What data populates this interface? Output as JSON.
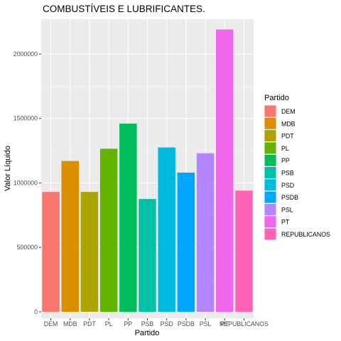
{
  "chart_data": {
    "type": "bar",
    "title": "COMBUSTÍVEIS E LUBRIFICANTES.",
    "xlabel": "Partido",
    "ylabel": "Valor Líquido",
    "categories": [
      "DEM",
      "MDB",
      "PDT",
      "PL",
      "PP",
      "PSB",
      "PSD",
      "PSDB",
      "PSL",
      "PT",
      "REPUBLICANOS"
    ],
    "values": [
      930000,
      1170000,
      930000,
      1265000,
      1460000,
      875000,
      1275000,
      1080000,
      1230000,
      2190000,
      940000
    ],
    "colors": [
      "#F8766D",
      "#DB8E00",
      "#AEA200",
      "#64B200",
      "#00BD5C",
      "#00C1A7",
      "#00BADE",
      "#00A6FF",
      "#B385FF",
      "#EF67EB",
      "#FF63B6"
    ],
    "yticks": [
      0,
      500000,
      1000000,
      1500000,
      2000000
    ],
    "ytick_labels": [
      "0",
      "500000",
      "1000000",
      "1500000",
      "2000000"
    ],
    "ylim": [
      -50000,
      2270000
    ],
    "grid": true,
    "legend": {
      "title": "Partido",
      "placement": "right",
      "entries": [
        "DEM",
        "MDB",
        "PDT",
        "PL",
        "PP",
        "PSB",
        "PSD",
        "PSDB",
        "PSL",
        "PT",
        "REPUBLICANOS"
      ]
    }
  }
}
